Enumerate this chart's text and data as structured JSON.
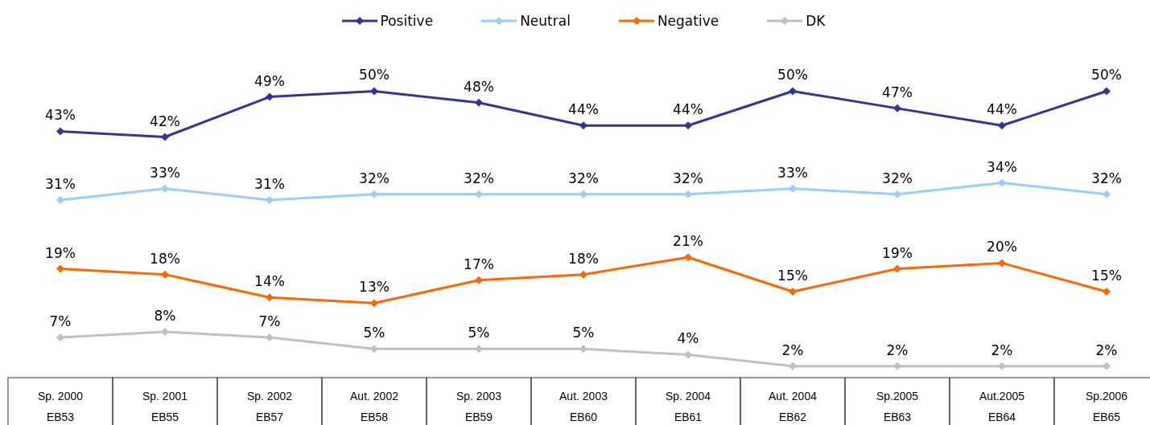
{
  "chart_data": {
    "type": "line",
    "categories": [
      "Sp. 2000\nEB53",
      "Sp. 2001\nEB55",
      "Sp. 2002\nEB57",
      "Aut. 2002\nEB58",
      "Sp. 2003\nEB59",
      "Aut. 2003\nEB60",
      "Sp. 2004\nEB61",
      "Aut. 2004\nEB62",
      "Sp.2005\nEB63",
      "Aut.2005\nEB64",
      "Sp.2006\nEB65"
    ],
    "series": [
      {
        "name": "Positive",
        "color": "#333399",
        "values": [
          43,
          42,
          49,
          50,
          48,
          44,
          44,
          50,
          47,
          44,
          50
        ],
        "value_labels": [
          "43%",
          "42%",
          "49%",
          "50%",
          "48%",
          "44%",
          "44%",
          "50%",
          "47%",
          "44%",
          "50%"
        ]
      },
      {
        "name": "Neutral",
        "color": "#99ccff",
        "values": [
          31,
          33,
          31,
          32,
          32,
          32,
          32,
          33,
          32,
          34,
          32
        ],
        "value_labels": [
          "31%",
          "33%",
          "31%",
          "32%",
          "32%",
          "32%",
          "32%",
          "33%",
          "32%",
          "34%",
          "32%"
        ]
      },
      {
        "name": "Negative",
        "color": "#ff6600",
        "values": [
          19,
          18,
          14,
          13,
          17,
          18,
          21,
          15,
          19,
          20,
          15
        ],
        "value_labels": [
          "19%",
          "18%",
          "14%",
          "13%",
          "17%",
          "18%",
          "21%",
          "15%",
          "19%",
          "20%",
          "15%"
        ]
      },
      {
        "name": "DK",
        "color": "#c0c0c0",
        "values": [
          7,
          8,
          7,
          5,
          5,
          5,
          4,
          2,
          2,
          2,
          2
        ],
        "value_labels": [
          "7%",
          "8%",
          "7%",
          "5%",
          "5%",
          "5%",
          "4%",
          "2%",
          "2%",
          "2%",
          "2%"
        ]
      }
    ],
    "grid": false,
    "legend": "top",
    "marker": "diamond",
    "line_style": "solid"
  }
}
